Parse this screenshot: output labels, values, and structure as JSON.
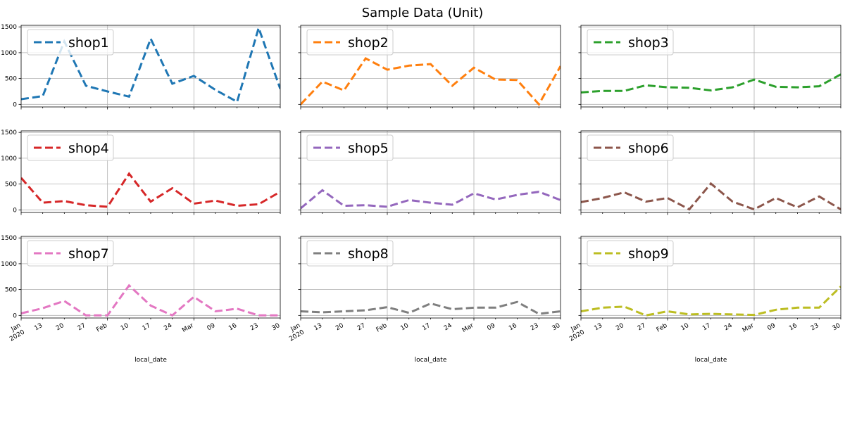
{
  "title": "Sample Data (Unit)",
  "chart_data": {
    "type": "line",
    "title": "Sample Data (Unit)",
    "xlabel": "local_date",
    "ylabel": "",
    "ylim": [
      -50,
      1530
    ],
    "y_ticks": [
      0,
      500,
      1000,
      1500
    ],
    "x": [
      "2020-01-06",
      "2020-01-13",
      "2020-01-20",
      "2020-01-27",
      "2020-02-03",
      "2020-02-10",
      "2020-02-17",
      "2020-02-24",
      "2020-03-02",
      "2020-03-09",
      "2020-03-16",
      "2020-03-23",
      "2020-03-30"
    ],
    "xlim": [
      "2020-01-06",
      "2020-03-30"
    ],
    "x_ticks": [
      {
        "date": "2020-01-06",
        "lines": [
          "Jan",
          "2020"
        ]
      },
      {
        "date": "2020-01-13",
        "lines": [
          "13"
        ]
      },
      {
        "date": "2020-01-20",
        "lines": [
          "20"
        ]
      },
      {
        "date": "2020-01-27",
        "lines": [
          "27"
        ]
      },
      {
        "date": "2020-02-03",
        "lines": [
          "Feb"
        ]
      },
      {
        "date": "2020-02-10",
        "lines": [
          "10"
        ]
      },
      {
        "date": "2020-02-17",
        "lines": [
          "17"
        ]
      },
      {
        "date": "2020-02-24",
        "lines": [
          "24"
        ]
      },
      {
        "date": "2020-03-02",
        "lines": [
          "Mar"
        ]
      },
      {
        "date": "2020-03-09",
        "lines": [
          "09"
        ]
      },
      {
        "date": "2020-03-16",
        "lines": [
          "16"
        ]
      },
      {
        "date": "2020-03-23",
        "lines": [
          "23"
        ]
      },
      {
        "date": "2020-03-30",
        "lines": [
          "30"
        ]
      }
    ],
    "x_gridlines": [
      "2020-02-03",
      "2020-03-02"
    ],
    "grid": true,
    "legend": "top-left",
    "line_style": "dashed",
    "series": [
      {
        "name": "shop1",
        "color": "#1f77b4",
        "values": [
          100,
          160,
          1220,
          360,
          250,
          150,
          1270,
          400,
          550,
          280,
          50,
          1480,
          300
        ]
      },
      {
        "name": "shop2",
        "color": "#ff7f0e",
        "values": [
          0,
          440,
          270,
          890,
          670,
          750,
          780,
          360,
          710,
          480,
          470,
          0,
          740
        ]
      },
      {
        "name": "shop3",
        "color": "#2ca02c",
        "values": [
          230,
          260,
          260,
          370,
          330,
          320,
          270,
          330,
          480,
          340,
          330,
          350,
          580
        ]
      },
      {
        "name": "shop4",
        "color": "#d62728",
        "values": [
          620,
          140,
          170,
          90,
          60,
          700,
          160,
          420,
          120,
          180,
          80,
          110,
          350
        ]
      },
      {
        "name": "shop5",
        "color": "#9467bd",
        "values": [
          30,
          380,
          80,
          90,
          60,
          190,
          140,
          100,
          320,
          200,
          290,
          350,
          190
        ]
      },
      {
        "name": "shop6",
        "color": "#8c564b",
        "values": [
          150,
          230,
          340,
          160,
          230,
          10,
          510,
          160,
          10,
          230,
          50,
          260,
          10
        ]
      },
      {
        "name": "shop7",
        "color": "#e377c2",
        "values": [
          40,
          140,
          280,
          0,
          0,
          580,
          190,
          0,
          360,
          80,
          130,
          0,
          0
        ]
      },
      {
        "name": "shop8",
        "color": "#7f7f7f",
        "values": [
          80,
          60,
          80,
          100,
          160,
          50,
          230,
          120,
          150,
          150,
          260,
          30,
          80
        ]
      },
      {
        "name": "shop9",
        "color": "#bcbd22",
        "values": [
          80,
          150,
          170,
          0,
          80,
          20,
          30,
          20,
          10,
          110,
          150,
          150,
          560
        ]
      }
    ]
  }
}
